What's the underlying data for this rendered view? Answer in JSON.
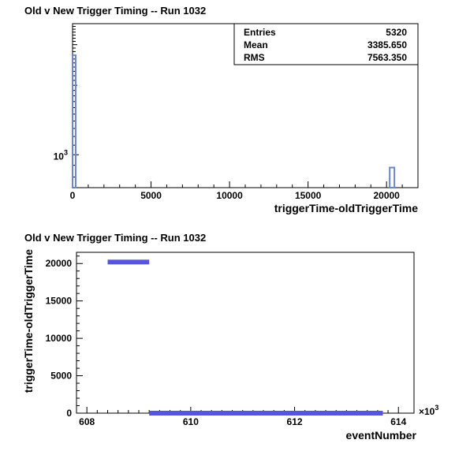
{
  "chart_data": [
    {
      "type": "bar",
      "title": "Old v New Trigger Timing -- Run 1032",
      "xlabel": "triggerTime-oldTriggerTime",
      "ylabel": "",
      "xlim": [
        0,
        22000
      ],
      "y_scale": "log",
      "ylim": [
        720,
        3700
      ],
      "x_ticks": [
        "0",
        "5000",
        "10000",
        "15000",
        "20000"
      ],
      "y_tick_label": "10^3",
      "stats": {
        "labels": [
          "Entries",
          "Mean",
          "RMS"
        ],
        "values": [
          "5320",
          "3385.650",
          "7563.350"
        ]
      },
      "bars": [
        {
          "x0": 0,
          "x1": 200,
          "value": 2700
        },
        {
          "x0": 20200,
          "x1": 20500,
          "value": 880
        }
      ],
      "colors": {
        "bar_line": "#6b86c9"
      }
    },
    {
      "type": "scatter",
      "title": "Old v New Trigger Timing -- Run 1032",
      "xlabel": "eventNumber",
      "ylabel": "triggerTime-oldTriggerTime",
      "xlim": [
        607.8,
        614.3
      ],
      "ylim": [
        0,
        21500
      ],
      "x_multiplier": "×10^3",
      "x_ticks": [
        "608",
        "610",
        "612",
        "614"
      ],
      "y_ticks": [
        "0",
        "5000",
        "10000",
        "15000",
        "20000"
      ],
      "series": [
        {
          "x_range": [
            608.4,
            609.2
          ],
          "y": 20200
        },
        {
          "x_range": [
            609.2,
            613.7
          ],
          "y": 0
        }
      ],
      "colors": {
        "marker": "#5555dd"
      }
    }
  ]
}
